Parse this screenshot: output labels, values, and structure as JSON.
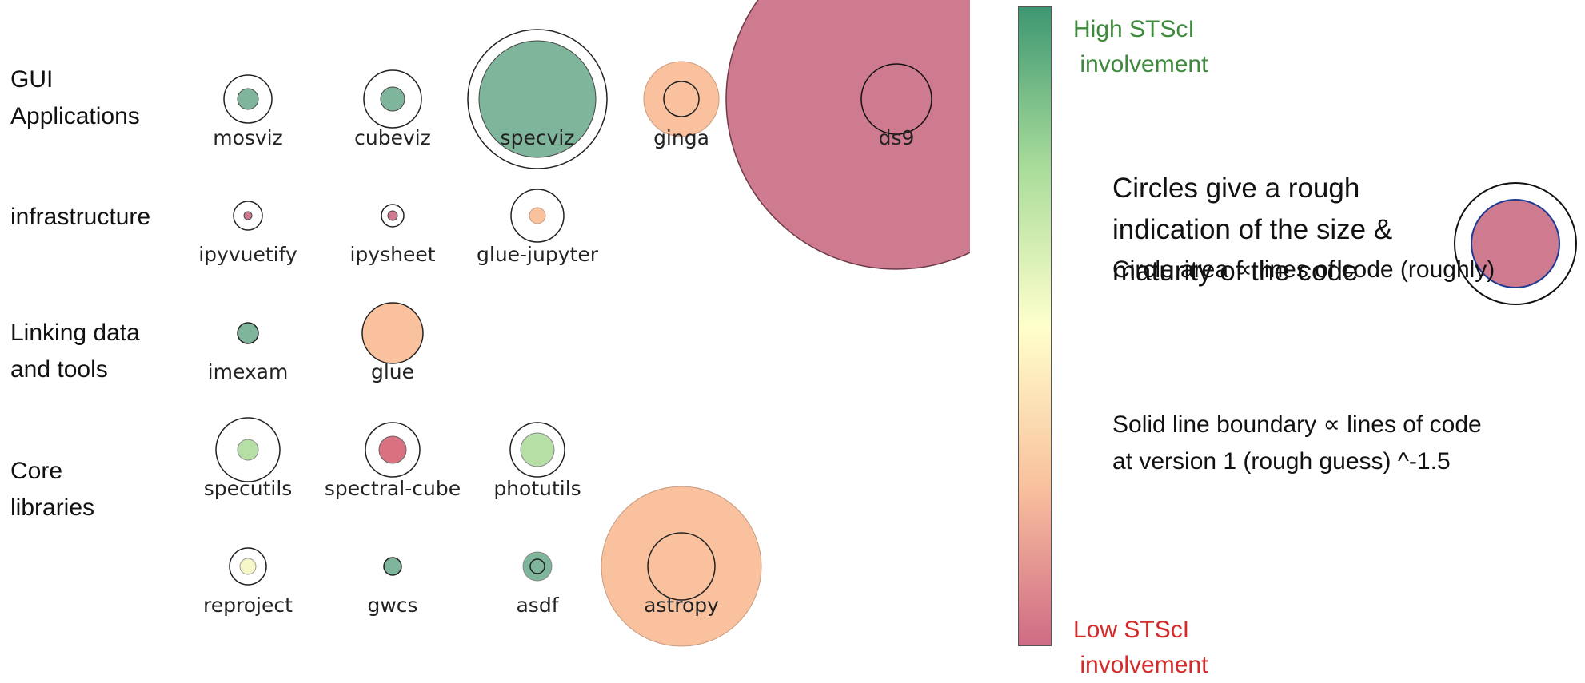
{
  "row_labels": [
    {
      "id": "gui",
      "line1": "GUI",
      "line2": "Applications"
    },
    {
      "id": "infra",
      "line1": "infrastructure",
      "line2": ""
    },
    {
      "id": "linking",
      "line1": "Linking data",
      "line2": "and tools"
    },
    {
      "id": "core",
      "line1": "Core",
      "line2": "libraries"
    }
  ],
  "packages": [
    {
      "name": "mosviz",
      "row": "gui",
      "fill": "#7fb59b",
      "outer": "r",
      "note": "small"
    },
    {
      "name": "cubeviz",
      "row": "gui",
      "fill": "#7fb59b"
    },
    {
      "name": "specviz",
      "row": "gui",
      "fill": "#7fb59b"
    },
    {
      "name": "ginga",
      "row": "gui",
      "fill": "#f9c19e"
    },
    {
      "name": "ds9",
      "row": "gui",
      "fill": "#cf7b8f"
    },
    {
      "name": "ipyvuetify",
      "row": "infra",
      "fill": "#cf7b8f"
    },
    {
      "name": "ipysheet",
      "row": "infra",
      "fill": "#cf7b8f"
    },
    {
      "name": "glue-jupyter",
      "row": "infra",
      "fill": "#f9c19e"
    },
    {
      "name": "imexam",
      "row": "linking",
      "fill": "#7fb59b"
    },
    {
      "name": "glue",
      "row": "linking",
      "fill": "#f9c19e"
    },
    {
      "name": "specutils",
      "row": "core",
      "fill": "#b6dfa6"
    },
    {
      "name": "spectral-cube",
      "row": "core",
      "fill": "#da7180"
    },
    {
      "name": "photutils",
      "row": "core",
      "fill": "#b6dfa6"
    },
    {
      "name": "reproject",
      "row": "core",
      "fill": "#f6f8c8"
    },
    {
      "name": "gwcs",
      "row": "core",
      "fill": "#7fb59b"
    },
    {
      "name": "asdf",
      "row": "core",
      "fill": "#7fb59b"
    },
    {
      "name": "astropy",
      "row": "core",
      "fill": "#f9c19e"
    }
  ],
  "colorbar": {
    "high_label_line1": "High STScI",
    "high_label_line2": " involvement",
    "high_color": "#3d8a3d",
    "low_label_line1": "Low STScI",
    "low_label_line2": " involvement",
    "low_color": "#d42a2a",
    "gradient_stops": [
      "#3e9772",
      "#a8dc9a",
      "#ffffcc",
      "#f9c19e",
      "#cf6b85"
    ]
  },
  "legend": {
    "main_line1": "Circles give a rough",
    "main_line2": "indication of the size &",
    "main_line3": "maturity of the code",
    "area_note": "Circle area ∝ lines of code (roughly)",
    "boundary_line1": "Solid line boundary ∝ lines of code",
    "boundary_line2": "at version 1 (rough guess) ^-1.5",
    "example_fill": "#cf7b8f",
    "example_stroke": "#1f3a93"
  }
}
